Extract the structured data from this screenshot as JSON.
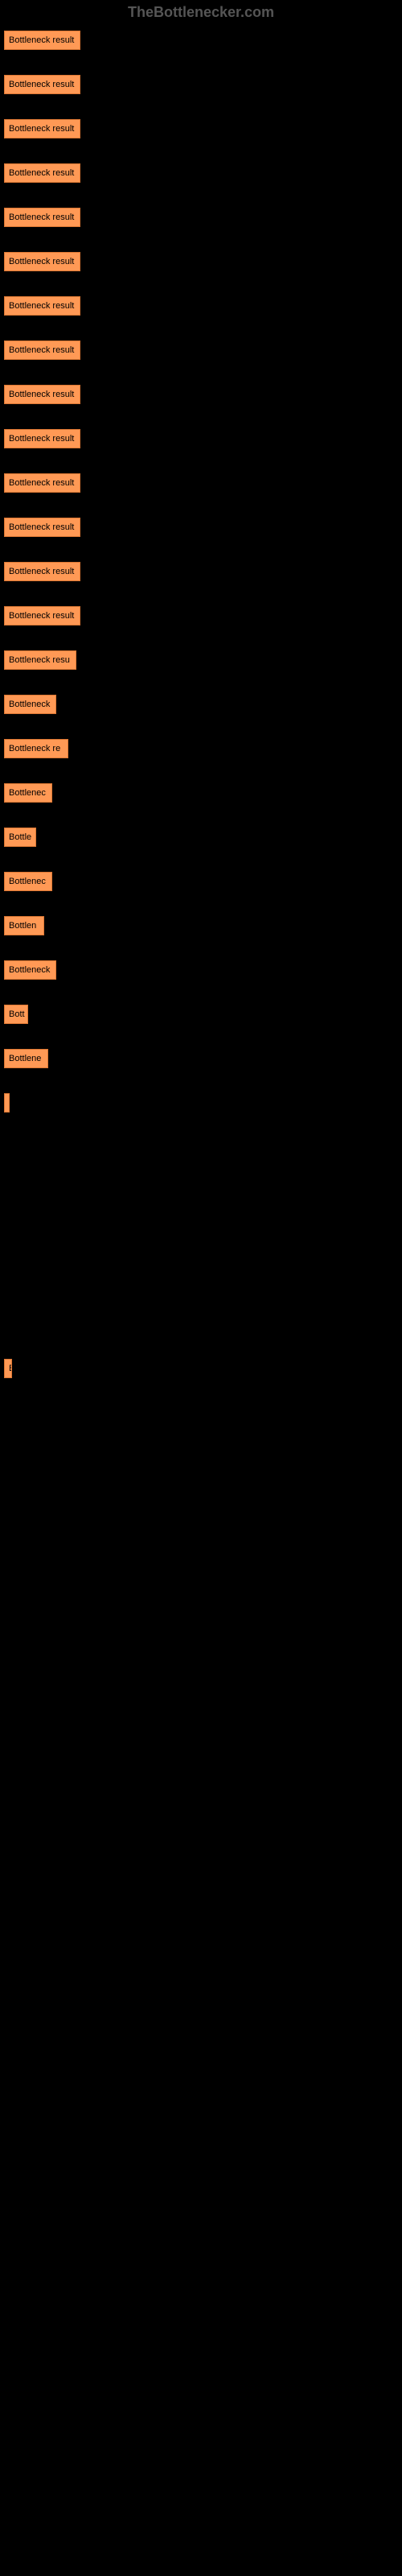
{
  "header": "TheBottlenecker.com",
  "chart": {
    "type": "bar",
    "bar_color": "#ff9955",
    "bar_border_color": "#dd7733",
    "background_color": "#000000",
    "text_color": "#000000",
    "label_fontsize": 11,
    "bars": [
      {
        "label": "Bottleneck result",
        "width": 95
      },
      {
        "label": "Bottleneck result",
        "width": 95
      },
      {
        "label": "Bottleneck result",
        "width": 95
      },
      {
        "label": "Bottleneck result",
        "width": 95
      },
      {
        "label": "Bottleneck result",
        "width": 95
      },
      {
        "label": "Bottleneck result",
        "width": 95
      },
      {
        "label": "Bottleneck result",
        "width": 95
      },
      {
        "label": "Bottleneck result",
        "width": 95
      },
      {
        "label": "Bottleneck result",
        "width": 95
      },
      {
        "label": "Bottleneck result",
        "width": 95
      },
      {
        "label": "Bottleneck result",
        "width": 95
      },
      {
        "label": "Bottleneck result",
        "width": 95
      },
      {
        "label": "Bottleneck result",
        "width": 95
      },
      {
        "label": "Bottleneck result",
        "width": 95
      },
      {
        "label": "Bottleneck resu",
        "width": 90
      },
      {
        "label": "Bottleneck",
        "width": 65
      },
      {
        "label": "Bottleneck re",
        "width": 80
      },
      {
        "label": "Bottlenec",
        "width": 60
      },
      {
        "label": "Bottle",
        "width": 40
      },
      {
        "label": "Bottlenec",
        "width": 60
      },
      {
        "label": "Bottlen",
        "width": 50
      },
      {
        "label": "Bottleneck",
        "width": 65
      },
      {
        "label": "Bott",
        "width": 30
      },
      {
        "label": "Bottlene",
        "width": 55
      },
      {
        "label": "",
        "width": 5
      },
      {
        "label": "",
        "width": 0
      },
      {
        "label": "",
        "width": 0
      },
      {
        "label": "",
        "width": 0
      },
      {
        "label": "",
        "width": 0
      },
      {
        "label": "",
        "width": 0
      },
      {
        "label": "B",
        "width": 10
      }
    ]
  }
}
